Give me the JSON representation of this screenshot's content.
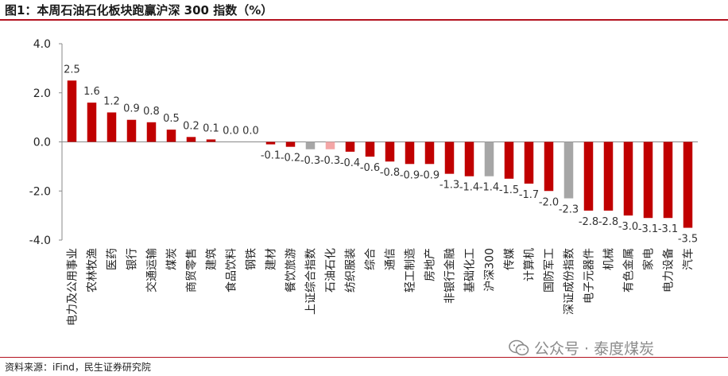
{
  "title": "图1：本周石油石化板块跑赢沪深 300 指数（%）",
  "source": "资料来源：iFind，民生证券研究院",
  "watermark": {
    "text": "公众号 · 泰度煤炭",
    "icon": "wechat-icon"
  },
  "colors": {
    "positive": "#c00000",
    "negative": "#c00000",
    "highlight": "#f4a6a6",
    "benchmark": "#a6a6a6",
    "rule": "#b3121f"
  },
  "chart_data": {
    "type": "bar",
    "title": "图1：本周石油石化板块跑赢沪深 300 指数（%）",
    "xlabel": "",
    "ylabel": "",
    "ylim": [
      -4.0,
      4.0
    ],
    "yticks": [
      "4.0",
      "2.0",
      "0.0",
      "-2.0",
      "-4.0"
    ],
    "grid": false,
    "legend": "none",
    "categories": [
      "电力及公用事业",
      "农林牧渔",
      "医药",
      "银行",
      "交通运输",
      "煤炭",
      "商贸零售",
      "建筑",
      "食品饮料",
      "钢铁",
      "建材",
      "餐饮旅游",
      "上证综合指数",
      "石油石化",
      "纺织服装",
      "综合",
      "通信",
      "轻工制造",
      "房地产",
      "非银行金融",
      "基础化工",
      "沪深300",
      "传媒",
      "计算机",
      "国防军工",
      "深证成份指数",
      "电子元器件",
      "机械",
      "有色金属",
      "家电",
      "电力设备",
      "汽车"
    ],
    "values": [
      2.5,
      1.6,
      1.2,
      0.9,
      0.8,
      0.5,
      0.2,
      0.1,
      0.0,
      0.0,
      -0.1,
      -0.2,
      -0.3,
      -0.3,
      -0.4,
      -0.6,
      -0.8,
      -0.9,
      -0.9,
      -1.3,
      -1.4,
      -1.4,
      -1.5,
      -1.7,
      -2.0,
      -2.3,
      -2.8,
      -2.8,
      -3.0,
      -3.1,
      -3.1,
      -3.5
    ],
    "labels": [
      "2.5",
      "1.6",
      "1.2",
      "0.9",
      "0.8",
      "0.5",
      "0.2",
      "0.1",
      "0.0",
      "0.0",
      "-0.1",
      "-0.2",
      "-0.3",
      "-0.3",
      "-0.4",
      "-0.6",
      "-0.8",
      "-0.9",
      "-0.9",
      "-1.3",
      "-1.4",
      "-1.4",
      "-1.5",
      "-1.7",
      "-2.0",
      "-2.3",
      "-2.8",
      "-2.8",
      "-3.0",
      "-3.1",
      "-3.1",
      "-3.5"
    ],
    "bar_colors": [
      "#c00000",
      "#c00000",
      "#c00000",
      "#c00000",
      "#c00000",
      "#c00000",
      "#c00000",
      "#c00000",
      "#c00000",
      "#c00000",
      "#c00000",
      "#c00000",
      "#a6a6a6",
      "#f4a6a6",
      "#c00000",
      "#c00000",
      "#c00000",
      "#c00000",
      "#c00000",
      "#c00000",
      "#c00000",
      "#a6a6a6",
      "#c00000",
      "#c00000",
      "#c00000",
      "#a6a6a6",
      "#c00000",
      "#c00000",
      "#c00000",
      "#c00000",
      "#c00000",
      "#c00000"
    ]
  }
}
